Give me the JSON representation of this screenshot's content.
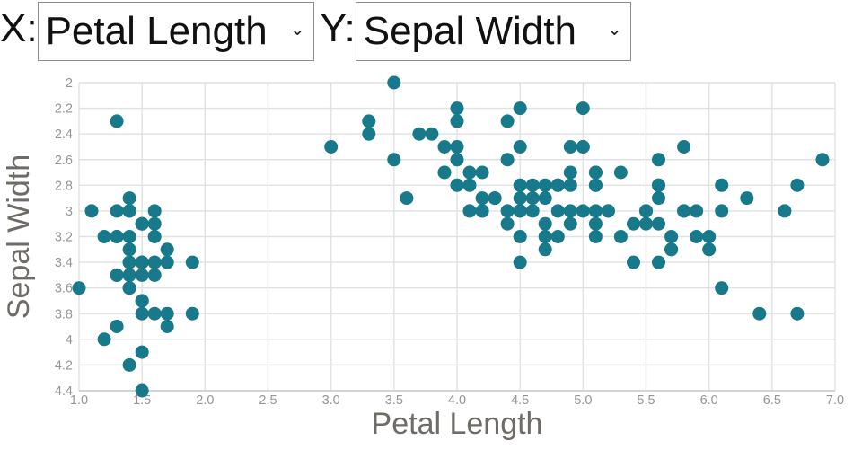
{
  "controls": {
    "x_label": "X:",
    "x_value": "Petal Length",
    "y_label": "Y:",
    "y_value": "Sepal Width",
    "chevron": "⌄"
  },
  "chart_data": {
    "type": "scatter",
    "title": "",
    "xlabel": "Petal Length",
    "ylabel": "Sepal Width",
    "xlim": [
      1.0,
      7.0
    ],
    "ylim": [
      2.0,
      4.4
    ],
    "y_axis_reversed": true,
    "grid": true,
    "legend": "none",
    "x_ticks": [
      "1.0",
      "1.5",
      "2.0",
      "2.5",
      "3.0",
      "3.5",
      "4.0",
      "4.5",
      "5.0",
      "5.5",
      "6.0",
      "6.5",
      "7.0"
    ],
    "y_ticks": [
      "2",
      "2.2",
      "2.4",
      "2.6",
      "2.8",
      "3",
      "3.2",
      "3.4",
      "3.6",
      "3.8",
      "4",
      "4.2",
      "4.4"
    ],
    "marker_color": "#17798A",
    "grid_color": "#e1e1e1",
    "axis_line_color": "#c9c9c9",
    "tick_label_color": "#959595",
    "axis_title_color": "#6F6B66",
    "points": [
      [
        1.4,
        3.5
      ],
      [
        1.4,
        3.0
      ],
      [
        1.3,
        3.2
      ],
      [
        1.5,
        3.1
      ],
      [
        1.4,
        3.6
      ],
      [
        1.7,
        3.9
      ],
      [
        1.4,
        3.4
      ],
      [
        1.5,
        3.4
      ],
      [
        1.4,
        2.9
      ],
      [
        1.5,
        3.1
      ],
      [
        1.5,
        3.7
      ],
      [
        1.6,
        3.4
      ],
      [
        1.4,
        3.0
      ],
      [
        1.1,
        3.0
      ],
      [
        1.2,
        4.0
      ],
      [
        1.5,
        4.4
      ],
      [
        1.3,
        3.9
      ],
      [
        1.4,
        3.5
      ],
      [
        1.7,
        3.8
      ],
      [
        1.5,
        3.8
      ],
      [
        1.7,
        3.4
      ],
      [
        1.5,
        3.7
      ],
      [
        1.0,
        3.6
      ],
      [
        1.7,
        3.3
      ],
      [
        1.9,
        3.4
      ],
      [
        1.6,
        3.0
      ],
      [
        1.6,
        3.4
      ],
      [
        1.5,
        3.5
      ],
      [
        1.4,
        3.4
      ],
      [
        1.6,
        3.2
      ],
      [
        1.6,
        3.1
      ],
      [
        1.5,
        3.4
      ],
      [
        1.5,
        4.1
      ],
      [
        1.4,
        4.2
      ],
      [
        1.5,
        3.1
      ],
      [
        1.2,
        3.2
      ],
      [
        1.3,
        3.5
      ],
      [
        1.4,
        3.6
      ],
      [
        1.3,
        3.0
      ],
      [
        1.5,
        3.4
      ],
      [
        1.3,
        3.5
      ],
      [
        1.3,
        2.3
      ],
      [
        1.3,
        3.2
      ],
      [
        1.6,
        3.5
      ],
      [
        1.9,
        3.8
      ],
      [
        1.4,
        3.0
      ],
      [
        1.6,
        3.8
      ],
      [
        1.4,
        3.2
      ],
      [
        1.5,
        3.7
      ],
      [
        1.4,
        3.3
      ],
      [
        4.7,
        3.2
      ],
      [
        4.5,
        3.2
      ],
      [
        4.9,
        3.1
      ],
      [
        4.0,
        2.3
      ],
      [
        4.6,
        2.8
      ],
      [
        4.5,
        2.8
      ],
      [
        4.7,
        3.3
      ],
      [
        3.3,
        2.4
      ],
      [
        4.6,
        2.9
      ],
      [
        3.9,
        2.7
      ],
      [
        3.5,
        2.0
      ],
      [
        4.2,
        3.0
      ],
      [
        4.0,
        2.2
      ],
      [
        4.7,
        2.9
      ],
      [
        3.6,
        2.9
      ],
      [
        4.4,
        3.1
      ],
      [
        4.5,
        3.0
      ],
      [
        4.1,
        2.7
      ],
      [
        4.5,
        2.2
      ],
      [
        3.9,
        2.5
      ],
      [
        4.8,
        3.2
      ],
      [
        4.0,
        2.8
      ],
      [
        4.9,
        2.5
      ],
      [
        4.7,
        2.8
      ],
      [
        4.3,
        2.9
      ],
      [
        4.4,
        3.0
      ],
      [
        4.8,
        2.8
      ],
      [
        5.0,
        3.0
      ],
      [
        4.5,
        2.9
      ],
      [
        3.5,
        2.6
      ],
      [
        3.8,
        2.4
      ],
      [
        3.7,
        2.4
      ],
      [
        3.9,
        2.7
      ],
      [
        5.1,
        2.7
      ],
      [
        4.5,
        3.0
      ],
      [
        4.5,
        3.4
      ],
      [
        4.7,
        3.1
      ],
      [
        4.4,
        2.3
      ],
      [
        4.1,
        3.0
      ],
      [
        4.0,
        2.5
      ],
      [
        4.4,
        2.6
      ],
      [
        4.6,
        3.0
      ],
      [
        4.0,
        2.6
      ],
      [
        3.3,
        2.3
      ],
      [
        4.2,
        2.7
      ],
      [
        4.2,
        3.0
      ],
      [
        4.2,
        2.9
      ],
      [
        4.3,
        2.9
      ],
      [
        3.0,
        2.5
      ],
      [
        4.1,
        2.8
      ],
      [
        6.0,
        3.3
      ],
      [
        5.1,
        2.7
      ],
      [
        5.9,
        3.0
      ],
      [
        5.6,
        2.9
      ],
      [
        5.8,
        3.0
      ],
      [
        6.6,
        3.0
      ],
      [
        4.5,
        2.5
      ],
      [
        6.3,
        2.9
      ],
      [
        5.8,
        2.5
      ],
      [
        6.1,
        3.6
      ],
      [
        5.1,
        3.2
      ],
      [
        5.3,
        2.7
      ],
      [
        5.5,
        3.0
      ],
      [
        5.0,
        2.5
      ],
      [
        5.1,
        2.8
      ],
      [
        5.3,
        3.2
      ],
      [
        5.5,
        3.0
      ],
      [
        6.7,
        3.8
      ],
      [
        6.9,
        2.6
      ],
      [
        5.0,
        2.2
      ],
      [
        5.7,
        3.2
      ],
      [
        4.9,
        2.8
      ],
      [
        6.7,
        2.8
      ],
      [
        4.9,
        2.7
      ],
      [
        5.7,
        3.3
      ],
      [
        6.0,
        3.2
      ],
      [
        4.8,
        2.8
      ],
      [
        4.9,
        3.0
      ],
      [
        5.6,
        2.8
      ],
      [
        5.8,
        3.0
      ],
      [
        6.1,
        2.8
      ],
      [
        6.4,
        3.8
      ],
      [
        5.6,
        2.8
      ],
      [
        5.1,
        2.8
      ],
      [
        5.6,
        2.6
      ],
      [
        6.1,
        3.0
      ],
      [
        5.6,
        3.4
      ],
      [
        5.5,
        3.1
      ],
      [
        4.8,
        3.0
      ],
      [
        5.4,
        3.1
      ],
      [
        5.6,
        3.1
      ],
      [
        5.1,
        3.1
      ],
      [
        5.1,
        2.7
      ],
      [
        5.9,
        3.2
      ],
      [
        5.7,
        3.3
      ],
      [
        5.2,
        3.0
      ],
      [
        5.0,
        2.5
      ],
      [
        5.2,
        3.0
      ],
      [
        5.4,
        3.4
      ],
      [
        5.1,
        3.0
      ]
    ]
  }
}
